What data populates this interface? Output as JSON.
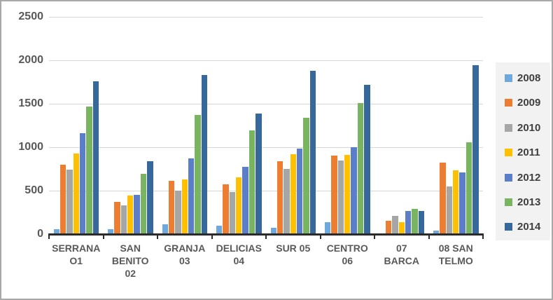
{
  "chart_data": {
    "type": "bar",
    "title": "",
    "xlabel": "",
    "ylabel": "",
    "categories": [
      "SERRANA\nO1",
      "SAN\nBENITO\n02",
      "GRANJA\n03",
      "DELICIAS\n04",
      "SUR 05",
      "CENTRO\n06",
      "07\nBARCA",
      "08 SAN\nTELMO"
    ],
    "series": [
      {
        "name": "2008",
        "color": "#6FA8DC",
        "values": [
          60,
          60,
          110,
          100,
          70,
          140,
          0,
          40
        ]
      },
      {
        "name": "2009",
        "color": "#ED7D31",
        "values": [
          800,
          370,
          610,
          570,
          835,
          900,
          150,
          820
        ]
      },
      {
        "name": "2010",
        "color": "#A6A6A6",
        "values": [
          740,
          330,
          500,
          480,
          750,
          850,
          210,
          545
        ]
      },
      {
        "name": "2011",
        "color": "#FFC000",
        "values": [
          930,
          440,
          630,
          655,
          920,
          910,
          140,
          730
        ]
      },
      {
        "name": "2012",
        "color": "#5B7EC9",
        "values": [
          1160,
          455,
          870,
          775,
          980,
          1000,
          265,
          710
        ]
      },
      {
        "name": "2013",
        "color": "#79B560",
        "values": [
          1470,
          690,
          1375,
          1190,
          1335,
          1510,
          290,
          1055
        ]
      },
      {
        "name": "2014",
        "color": "#36689B",
        "values": [
          1760,
          840,
          1830,
          1390,
          1880,
          1715,
          270,
          1940
        ]
      }
    ],
    "ylim": [
      0,
      2500
    ],
    "yticks": [
      0,
      500,
      1000,
      1500,
      2000,
      2500
    ],
    "grid": true,
    "legend_position": "right",
    "legend_background": "#F2F2F2",
    "gridline_color": "#D6D6D6",
    "axis_color": "#2B2B2B",
    "label_color": "#595959"
  }
}
